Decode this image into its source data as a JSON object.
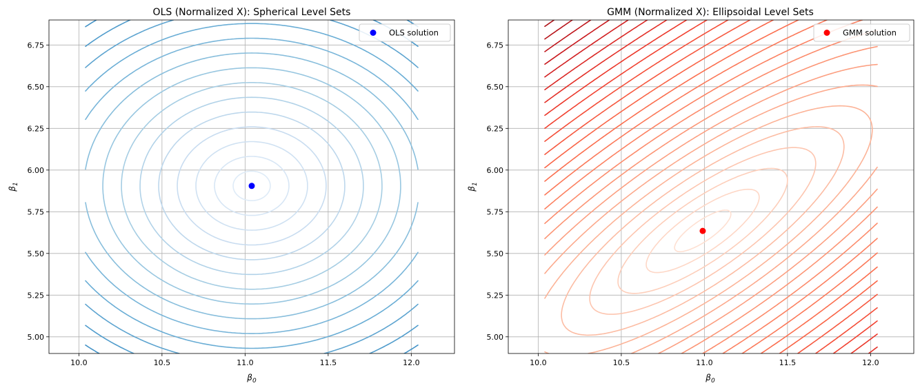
{
  "chart_data": [
    {
      "type": "contour",
      "title": "OLS (Normalized X): Spherical Level Sets",
      "xlabel": "β",
      "xlabel_sub": "0",
      "ylabel": "β",
      "ylabel_sub": "1",
      "xlim": [
        9.82,
        12.26
      ],
      "ylim": [
        4.9,
        6.9
      ],
      "xticks": [
        10.0,
        10.5,
        11.0,
        11.5,
        12.0
      ],
      "xtick_labels": [
        "10.0",
        "10.5",
        "11.0",
        "11.5",
        "12.0"
      ],
      "yticks": [
        5.0,
        5.25,
        5.5,
        5.75,
        6.0,
        6.25,
        6.5,
        6.75
      ],
      "ytick_labels": [
        "5.00",
        "5.25",
        "5.50",
        "5.75",
        "6.00",
        "6.25",
        "6.50",
        "6.75"
      ],
      "grid": true,
      "colormap": "Blues",
      "level_sets": "spherical",
      "contour_x_range": [
        10.04,
        12.04
      ],
      "contour_y_range": [
        4.9,
        6.9
      ],
      "solution": {
        "label": "OLS solution",
        "beta0": 11.04,
        "beta1": 5.905,
        "color": "#0000ff"
      },
      "legend_position": "upper right"
    },
    {
      "type": "contour",
      "title": "GMM (Normalized X): Ellipsoidal Level Sets",
      "xlabel": "β",
      "xlabel_sub": "0",
      "ylabel": "β",
      "ylabel_sub": "1",
      "xlim": [
        9.82,
        12.26
      ],
      "ylim": [
        4.9,
        6.9
      ],
      "xticks": [
        10.0,
        10.5,
        11.0,
        11.5,
        12.0
      ],
      "xtick_labels": [
        "10.0",
        "10.5",
        "11.0",
        "11.5",
        "12.0"
      ],
      "yticks": [
        5.0,
        5.25,
        5.5,
        5.75,
        6.0,
        6.25,
        6.5,
        6.75
      ],
      "ytick_labels": [
        "5.00",
        "5.25",
        "5.50",
        "5.75",
        "6.00",
        "6.25",
        "6.50",
        "6.75"
      ],
      "grid": true,
      "colormap": "Reds",
      "level_sets": "ellipsoidal",
      "contour_x_range": [
        10.04,
        12.04
      ],
      "contour_y_range": [
        4.9,
        6.9
      ],
      "solution": {
        "label": "GMM solution",
        "beta0": 10.99,
        "beta1": 5.635,
        "color": "#ff0000"
      },
      "legend_position": "upper right"
    }
  ]
}
